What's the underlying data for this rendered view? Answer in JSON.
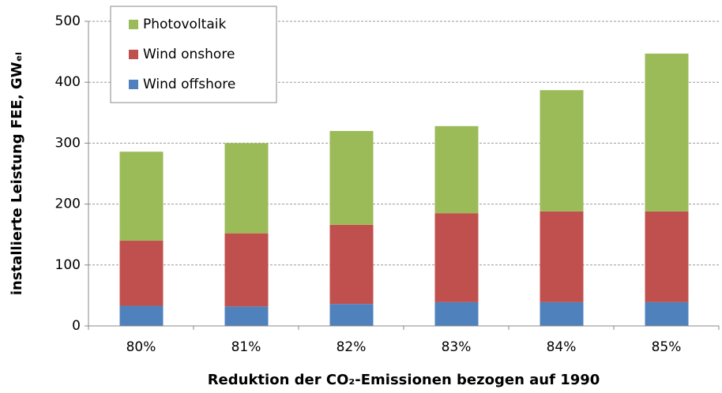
{
  "chart_data": {
    "type": "stacked_bar",
    "x_label": "Reduktion der CO₂-Emissionen bezogen auf 1990",
    "y_label": "installierte Leistung FEE, GWₑₗ",
    "categories": [
      "80%",
      "81%",
      "82%",
      "83%",
      "84%",
      "85%"
    ],
    "series": [
      {
        "name": "Wind offshore",
        "color": "#4f81bd",
        "values": [
          33,
          32,
          36,
          39,
          39,
          39
        ]
      },
      {
        "name": "Wind onshore",
        "color": "#c0504d",
        "values": [
          107,
          120,
          130,
          146,
          149,
          149
        ]
      },
      {
        "name": "Photovoltaik",
        "color": "#9bbb59",
        "values": [
          146,
          148,
          154,
          143,
          199,
          259
        ]
      }
    ],
    "ylim": [
      0,
      500
    ],
    "yticks": [
      0,
      100,
      200,
      300,
      400,
      500
    ],
    "grid": true,
    "legend": "upper left"
  }
}
